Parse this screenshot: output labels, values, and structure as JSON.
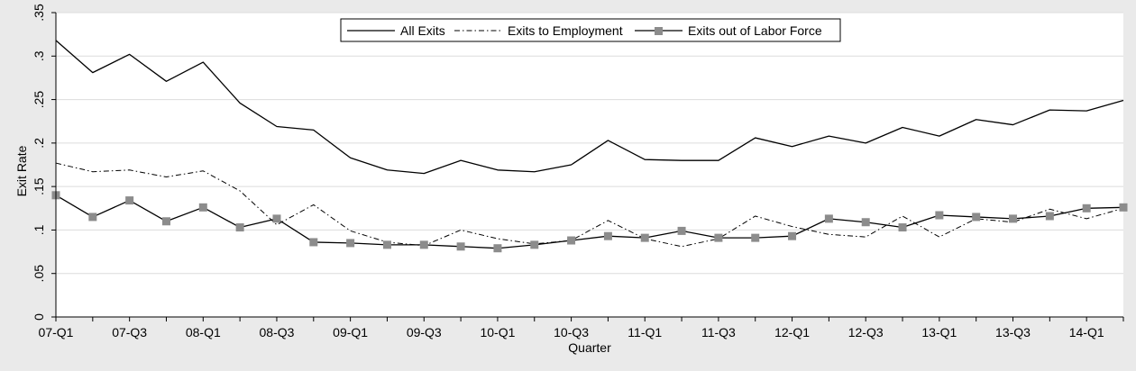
{
  "chart_data": {
    "type": "line",
    "title": "",
    "xlabel": "Quarter",
    "ylabel": "Exit Rate",
    "ylim": [
      0,
      0.35
    ],
    "yticks": [
      0,
      0.05,
      0.1,
      0.15,
      0.2,
      0.25,
      0.3,
      0.35
    ],
    "ytick_labels": [
      "0",
      ".05",
      ".1",
      ".15",
      ".2",
      ".25",
      ".3",
      ".35"
    ],
    "x": [
      "07-Q1",
      "07-Q2",
      "07-Q3",
      "07-Q4",
      "08-Q1",
      "08-Q2",
      "08-Q3",
      "08-Q4",
      "09-Q1",
      "09-Q2",
      "09-Q3",
      "09-Q4",
      "10-Q1",
      "10-Q2",
      "10-Q3",
      "10-Q4",
      "11-Q1",
      "11-Q2",
      "11-Q3",
      "11-Q4",
      "12-Q1",
      "12-Q2",
      "12-Q3",
      "12-Q4",
      "13-Q1",
      "13-Q2",
      "13-Q3",
      "13-Q4",
      "14-Q1",
      "14-Q2"
    ],
    "xtick_labels": [
      "07-Q1",
      "07-Q3",
      "08-Q1",
      "08-Q3",
      "09-Q1",
      "09-Q3",
      "10-Q1",
      "10-Q3",
      "11-Q1",
      "11-Q3",
      "12-Q1",
      "12-Q3",
      "13-Q1",
      "13-Q3",
      "14-Q1"
    ],
    "grid": "horizontal",
    "legend": "top-center",
    "series": [
      {
        "name": "All Exits",
        "style": "solid",
        "values": [
          0.318,
          0.281,
          0.302,
          0.271,
          0.293,
          0.246,
          0.219,
          0.215,
          0.183,
          0.169,
          0.165,
          0.18,
          0.169,
          0.167,
          0.175,
          0.203,
          0.181,
          0.18,
          0.18,
          0.206,
          0.196,
          0.208,
          0.2,
          0.218,
          0.208,
          0.227,
          0.221,
          0.238,
          0.237,
          0.249
        ]
      },
      {
        "name": "Exits to Employment",
        "style": "dash-dot",
        "values": [
          0.177,
          0.167,
          0.169,
          0.161,
          0.168,
          0.145,
          0.106,
          0.129,
          0.099,
          0.086,
          0.082,
          0.1,
          0.09,
          0.084,
          0.088,
          0.111,
          0.09,
          0.081,
          0.09,
          0.116,
          0.104,
          0.095,
          0.092,
          0.116,
          0.092,
          0.113,
          0.109,
          0.124,
          0.113,
          0.125
        ]
      },
      {
        "name": "Exits out of Labor Force",
        "style": "solid-square",
        "values": [
          0.14,
          0.115,
          0.134,
          0.11,
          0.126,
          0.103,
          0.113,
          0.086,
          0.085,
          0.083,
          0.083,
          0.081,
          0.079,
          0.083,
          0.088,
          0.093,
          0.091,
          0.099,
          0.091,
          0.091,
          0.093,
          0.113,
          0.109,
          0.103,
          0.117,
          0.115,
          0.113,
          0.116,
          0.125,
          0.126
        ]
      }
    ]
  }
}
